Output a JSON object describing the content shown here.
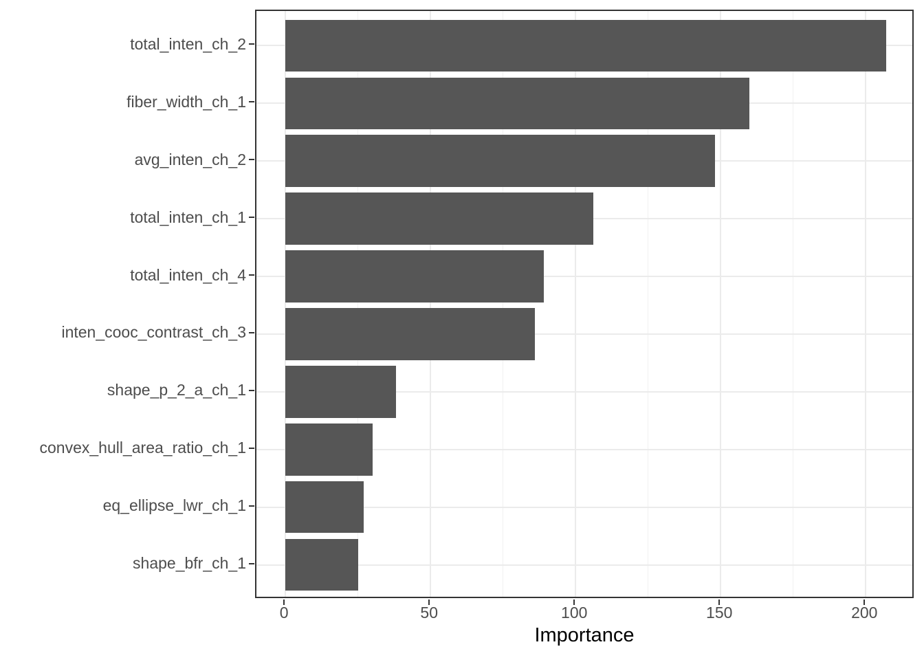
{
  "figure": {
    "background": "#FFFFFF"
  },
  "chart_data": {
    "type": "bar",
    "orientation": "horizontal",
    "title": "",
    "xlabel": "Importance",
    "ylabel": "",
    "categories": [
      "total_inten_ch_2",
      "fiber_width_ch_1",
      "avg_inten_ch_2",
      "total_inten_ch_1",
      "total_inten_ch_4",
      "inten_cooc_contrast_ch_3",
      "shape_p_2_a_ch_1",
      "convex_hull_area_ratio_ch_1",
      "eq_ellipse_lwr_ch_1",
      "shape_bfr_ch_1"
    ],
    "values": [
      207,
      160,
      148,
      106,
      89,
      86,
      38,
      30,
      27,
      25
    ],
    "x_ticks": [
      0,
      50,
      100,
      150,
      200
    ],
    "x_minor_ticks": [
      25,
      75,
      125,
      175
    ],
    "xlim": [
      -10,
      217
    ],
    "bar_width_fraction": 0.9,
    "grid": true,
    "legend": false,
    "colors": {
      "bar_fill": "#565656",
      "panel_border": "#333333",
      "grid_major": "#EBEBEB",
      "grid_minor": "#F1F1F1",
      "tick_mark": "#333333",
      "axis_text": "#4D4D4D",
      "axis_title": "#000000",
      "background": "#FFFFFF"
    }
  }
}
